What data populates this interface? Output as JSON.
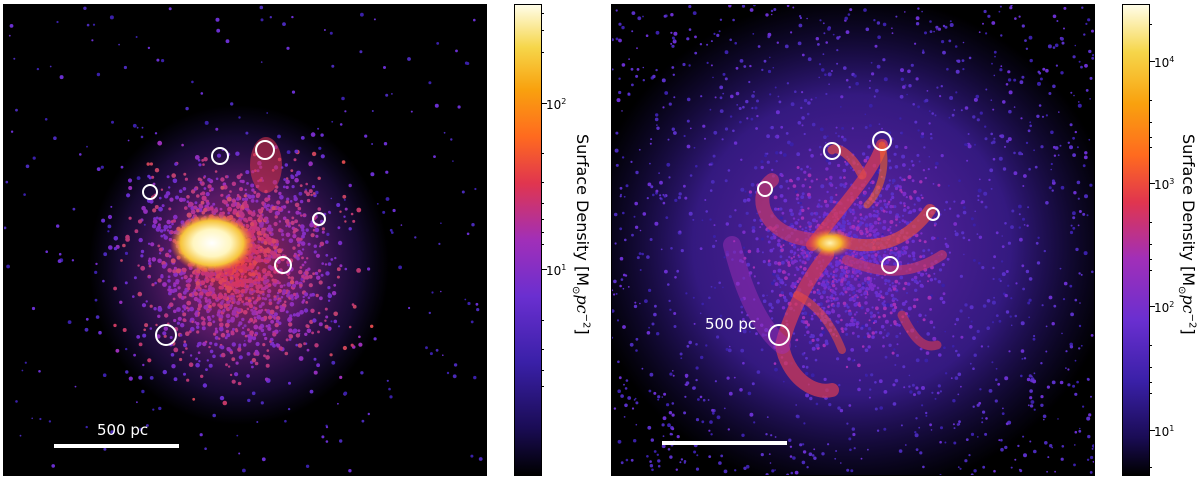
{
  "left_panel": {
    "scale_bar_label": "500 pc",
    "colorbar": {
      "title": "Surface Density [M",
      "title_sub": "⊙",
      "title_mid": "pc",
      "title_sup": "−2",
      "title_end": "]",
      "ticks": [
        {
          "base": "10",
          "exp": "2"
        },
        {
          "base": "10",
          "exp": "1"
        }
      ]
    }
  },
  "right_panel": {
    "scale_bar_label": "500 pc",
    "colorbar": {
      "title": "Surface Density [M",
      "title_sub": "⊙",
      "title_mid": "pc",
      "title_sup": "−2",
      "title_end": "]",
      "ticks": [
        {
          "base": "10",
          "exp": "4"
        },
        {
          "base": "10",
          "exp": "3"
        },
        {
          "base": "10",
          "exp": "2"
        },
        {
          "base": "10",
          "exp": "1"
        }
      ]
    }
  },
  "colors": {
    "background": "#000000",
    "marker": "#ffffff"
  }
}
